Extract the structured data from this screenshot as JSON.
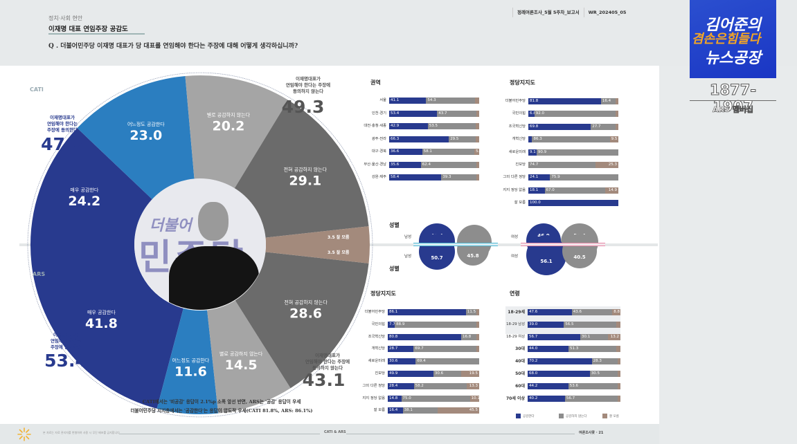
{
  "header": {
    "category": "정치·사회 현안",
    "title": "이재명 대표 연임주장 공감도",
    "question": "Q . 더불어민주당 이재명 대표가 당 대표를 연임해야 한다는 주장에 대해 어떻게 생각하십니까?",
    "doc_name": "정례여론조사_5월 5주차_보고서",
    "doc_code": "WR_202405_05"
  },
  "overlay": {
    "logo_line1": "김어준의",
    "logo_line2": "겸손은힘들다",
    "logo_line3": "뉴스공장",
    "phone": "1877-1907",
    "phone_sub": "ARS 멤버십"
  },
  "colors": {
    "very_agree": "#283a8e",
    "somewhat_agree": "#2b7ec0",
    "not_really": "#a5a5a5",
    "not_at_all": "#6b6b6b",
    "dont_know": "#a38a7c"
  },
  "chart_data": [
    {
      "type": "pie",
      "title": "CATI",
      "layout": "upper half donut",
      "slices": [
        {
          "label": "매우 공감한다",
          "value": 24.2
        },
        {
          "label": "어느정도 공감한다",
          "value": 23.0
        },
        {
          "label": "별로 공감하지 않는다",
          "value": 20.2
        },
        {
          "label": "전혀 공감하지 않는다",
          "value": 29.1
        },
        {
          "label": "잘 모름",
          "value": 3.5
        }
      ],
      "agree_total": {
        "label": "이재명대표가 연임해야 한다는 주장에 동의한다",
        "value": 47.2
      },
      "disagree_total": {
        "label": "이재명대표가 연임해야 한다는 주장에 동의하지 않는다",
        "value": 49.3
      }
    },
    {
      "type": "pie",
      "title": "ARS",
      "layout": "lower half donut",
      "slices": [
        {
          "label": "매우 공감한다",
          "value": 41.8
        },
        {
          "label": "어느정도 공감한다",
          "value": 11.6
        },
        {
          "label": "별로 공감하지 않는다",
          "value": 14.5
        },
        {
          "label": "전혀 공감하지 않는다",
          "value": 28.6
        },
        {
          "label": "잘 모름",
          "value": 3.5
        }
      ],
      "agree_total": {
        "label": "이재명대표가 연임해야 한다는 주장에 동의한다",
        "value": 53.4
      },
      "disagree_total": {
        "label": "이재명대표가 연임해야 한다는 주장에 동의하지 않는다",
        "value": 43.1
      }
    },
    {
      "type": "bar",
      "stacked": true,
      "title": "권역",
      "method": "CATI",
      "categories": [
        "서울",
        "인천·경기",
        "대전·충청·세종",
        "광주·전라",
        "대구·경북",
        "부산·울산·경남",
        "강원·제주"
      ],
      "series": [
        {
          "name": "공감한다",
          "values": [
            41.1,
            53.4,
            42.9,
            66.3,
            36.6,
            35.6,
            58.4
          ]
        },
        {
          "name": "공감하지 않는다",
          "values": [
            54.3,
            43.7,
            53.5,
            29.5,
            58.1,
            62.4,
            39.3
          ]
        },
        {
          "name": "잘 모름",
          "values": [
            4.6,
            2.9,
            3.6,
            4.2,
            5.3,
            2.0,
            2.3
          ]
        }
      ],
      "labels_shown": {
        "잘 모름": [
          null,
          null,
          null,
          null,
          5.3,
          null,
          null
        ]
      }
    },
    {
      "type": "bar",
      "stacked": true,
      "title": "정당지지도",
      "method": "CATI",
      "categories": [
        "더불어민주당",
        "국민의힘",
        "조국혁신당",
        "개혁신당",
        "새로운미래",
        "진보당",
        "그외 다른 정당",
        "지지 정당 없음",
        "잘 모름"
      ],
      "series": [
        {
          "name": "공감한다",
          "values": [
            81.8,
            6.8,
            69.8,
            4.2,
            9.1,
            0,
            24.1,
            18.1,
            100.0
          ]
        },
        {
          "name": "공감하지 않는다",
          "values": [
            16.4,
            92.0,
            27.7,
            86.3,
            90.9,
            74.7,
            75.9,
            67.0,
            0
          ]
        },
        {
          "name": "잘 모름",
          "values": [
            1.8,
            1.2,
            2.5,
            9.5,
            0,
            25.3,
            0,
            14.9,
            0
          ]
        }
      ],
      "labels_shown": {
        "잘 모름": [
          null,
          null,
          null,
          9.5,
          null,
          25.3,
          null,
          14.9,
          null
        ]
      }
    },
    {
      "type": "bar",
      "stacked": true,
      "title": "성별",
      "categories": [
        "남성",
        "여성"
      ],
      "series": [
        {
          "name": "CATI 공감한다",
          "values": [
            48.4,
            46.0
          ]
        },
        {
          "name": "CATI 공감하지 않는다",
          "values": [
            48.2,
            50.4
          ]
        },
        {
          "name": "ARS 공감한다",
          "values": [
            50.7,
            56.1
          ]
        },
        {
          "name": "ARS 공감하지 않는다",
          "values": [
            45.8,
            40.5
          ]
        }
      ]
    },
    {
      "type": "bar",
      "stacked": true,
      "title": "정당지지도",
      "method": "ARS",
      "categories": [
        "더불어민주당",
        "국민의힘",
        "조국혁신당",
        "개혁신당",
        "새로운미래",
        "진보당",
        "그외 다른 정당",
        "지지 정당 없음",
        "잘 모름"
      ],
      "series": [
        {
          "name": "공감한다",
          "values": [
            86.1,
            7.7,
            80.8,
            28.7,
            30.6,
            49.9,
            28.4,
            14.8,
            16.4
          ]
        },
        {
          "name": "공감하지 않는다",
          "values": [
            11.5,
            88.9,
            16.8,
            69.7,
            69.4,
            30.6,
            58.2,
            75.0,
            38.1
          ]
        },
        {
          "name": "잘 모름",
          "values": [
            2.4,
            3.4,
            2.4,
            1.6,
            0,
            19.5,
            13.3,
            10.1,
            45.5
          ]
        }
      ],
      "labels_shown": {
        "잘 모름": [
          null,
          null,
          null,
          null,
          null,
          19.5,
          13.3,
          10.1,
          45.5
        ]
      }
    },
    {
      "type": "bar",
      "stacked": true,
      "title": "연령",
      "method": "ARS",
      "categories": [
        "18-29세",
        "18-29 남성",
        "18-29 여성",
        "30대",
        "40대",
        "50대",
        "60대",
        "70세 이상"
      ],
      "series": [
        {
          "name": "공감한다",
          "values": [
            47.6,
            39.0,
            56.7,
            44.0,
            70.2,
            68.0,
            44.2,
            40.2
          ]
        },
        {
          "name": "공감하지 않는다",
          "values": [
            43.6,
            56.5,
            30.1,
            51.3,
            28.3,
            30.5,
            53.6,
            56.7
          ]
        },
        {
          "name": "잘 모름",
          "values": [
            8.8,
            4.5,
            13.2,
            4.7,
            1.5,
            1.5,
            2.2,
            3.1
          ]
        }
      ],
      "labels_shown": {
        "잘 모름": [
          8.8,
          null,
          13.2,
          null,
          null,
          null,
          null,
          null
        ]
      }
    }
  ],
  "pie_labels": {
    "cati_method": "CATI",
    "ars_method": "ARS",
    "agree_caption": "이재명대표가\n연임해야 한다는\n주장에 동의한다",
    "disagree_caption": "이재명대표가\n연임해야 한다는 주장에\n동의하지 않는다",
    "dk_label": "잘 모름"
  },
  "center_image": {
    "alt": "이재명 대표 사진",
    "bg_text_small": "더불어",
    "bg_text_large": "민주당"
  },
  "summary": {
    "line1": "CATI에서는 '비공감' 응답이 2.1%p 소폭 앞선 반면, ARS는 '공감' 응답이 우세",
    "line2": "더불어민주당 지지층에서는 '공감한다'는 응답이 압도적 우세(CATI 81.8%, ARS: 86.1%)"
  },
  "gender": {
    "title": "성별",
    "male": "남성",
    "female": "여성"
  },
  "legend": {
    "agree": "공감한다",
    "disagree": "공감하지 않는다",
    "dk": "잘 모름"
  },
  "footer": {
    "note": "본 자료는 자료 관리자를 변형하여 사용 시 무단 배포를 금지합니다",
    "center": "CATI & ARS",
    "right": "여론조사꽃 · 21"
  }
}
